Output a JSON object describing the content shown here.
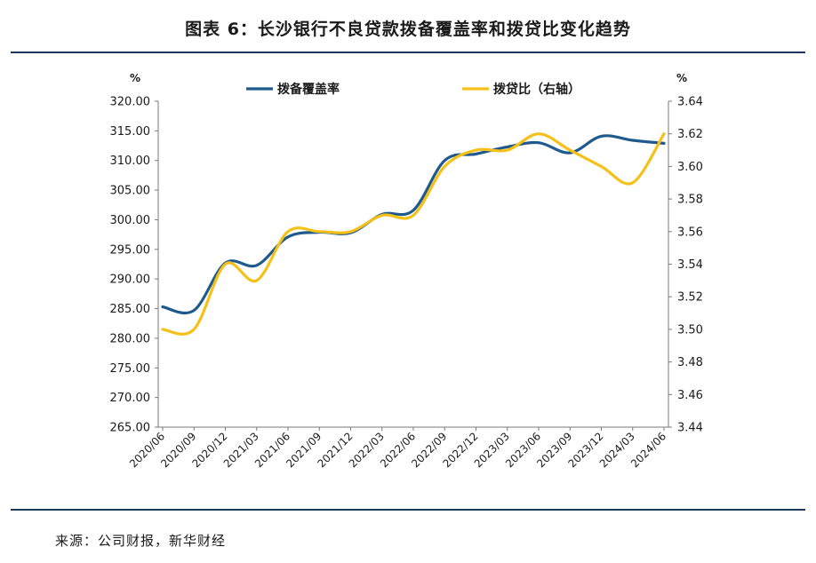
{
  "figure": {
    "title": "图表 6：长沙银行不良贷款拨备覆盖率和拨贷比变化趋势",
    "source": "来源：公司财报，新华财经"
  },
  "chart_data": {
    "type": "line",
    "categories": [
      "2020/06",
      "2020/09",
      "2020/12",
      "2021/03",
      "2021/06",
      "2021/09",
      "2021/12",
      "2022/03",
      "2022/06",
      "2022/09",
      "2022/12",
      "2023/03",
      "2023/06",
      "2023/09",
      "2023/12",
      "2024/03",
      "2024/06"
    ],
    "series": [
      {
        "name": "拨备覆盖率",
        "axis": "left",
        "color": "#1f5a8e",
        "values": [
          285.3,
          284.7,
          292.7,
          292.3,
          297.1,
          297.9,
          297.8,
          300.9,
          301.6,
          310.0,
          311.1,
          312.3,
          313.0,
          311.3,
          314.1,
          313.4,
          312.9
        ]
      },
      {
        "name": "拨贷比（右轴）",
        "axis": "right",
        "color": "#f5c018",
        "values": [
          3.5,
          3.5,
          3.54,
          3.53,
          3.56,
          3.56,
          3.56,
          3.57,
          3.57,
          3.6,
          3.61,
          3.61,
          3.62,
          3.61,
          3.6,
          3.59,
          3.62
        ]
      }
    ],
    "left_axis": {
      "unit": "%",
      "ylim": [
        265,
        320
      ],
      "ticks": [
        "265.00",
        "270.00",
        "275.00",
        "280.00",
        "285.00",
        "290.00",
        "295.00",
        "300.00",
        "305.00",
        "310.00",
        "315.00",
        "320.00"
      ]
    },
    "right_axis": {
      "unit": "%",
      "ylim": [
        3.44,
        3.64
      ],
      "ticks": [
        "3.44",
        "3.46",
        "3.48",
        "3.50",
        "3.52",
        "3.54",
        "3.56",
        "3.58",
        "3.60",
        "3.62",
        "3.64"
      ]
    },
    "grid": false,
    "legend": "top"
  }
}
